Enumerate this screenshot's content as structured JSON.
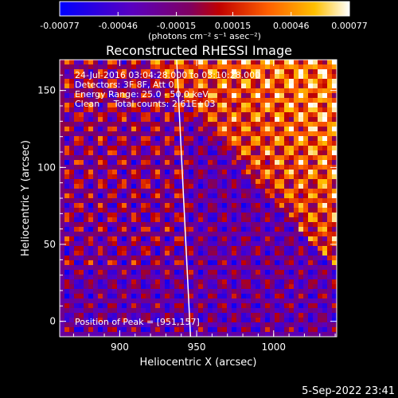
{
  "colorbar": {
    "tick_labels": [
      "-0.00077",
      "-0.00046",
      "-0.00015",
      "0.00015",
      "0.00046",
      "0.00077"
    ],
    "unit_label": "(photons cm⁻² s⁻¹ asec⁻²)",
    "range": [
      -0.00077,
      0.00077
    ]
  },
  "title": "Reconstructed RHESSI Image",
  "annotations": [
    "24-Jul-2016 03:04:28.000 to 03:10:28.000",
    "Detectors: 3F 8F, Att 0",
    "Energy Range: 25.0 - 50.0 keV",
    "Clean     Total counts: 2.61E+03"
  ],
  "peak_label": "Position of Peak = [951,157]",
  "footer_date": "5-Sep-2022 23:41",
  "colors": {
    "background": "#000000",
    "foreground": "#ffffff",
    "limb_line": "#ffffff"
  },
  "chart_data": {
    "type": "heatmap",
    "title": "Reconstructed RHESSI Image",
    "xlabel": "Heliocentric X (arcsec)",
    "ylabel": "Heliocentric Y (arcsec)",
    "x_ticks": [
      900,
      950,
      1000
    ],
    "y_ticks": [
      0,
      50,
      100,
      150
    ],
    "xlim": [
      861,
      1041
    ],
    "ylim": [
      -10,
      170
    ],
    "zlim": [
      -0.00077,
      0.00077
    ],
    "colormap": "blue-purple-red-yellow-white",
    "peak": [
      951,
      157
    ],
    "limb_line": [
      [
        937,
        170
      ],
      [
        946,
        -10
      ]
    ]
  }
}
